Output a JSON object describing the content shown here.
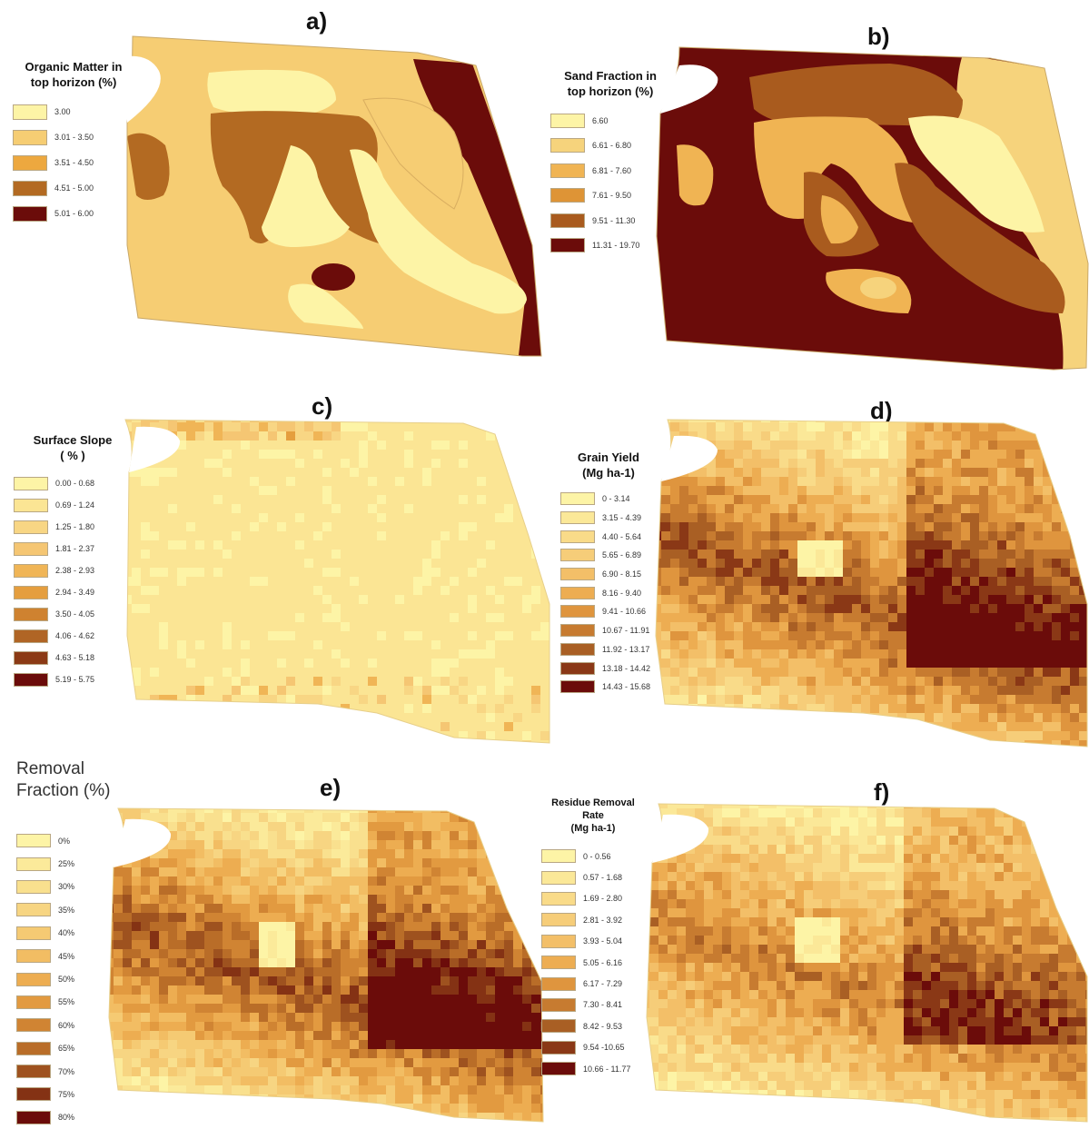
{
  "panels": [
    {
      "id": "a",
      "label": "a)",
      "legend_title": [
        "Organic Matter in",
        "top horizon (%)"
      ],
      "classes": [
        {
          "label": "3.00",
          "color": "#FDF4A6"
        },
        {
          "label": "3.01 - 3.50",
          "color": "#F6CD73"
        },
        {
          "label": "3.51 - 4.50",
          "color": "#EDA83F"
        },
        {
          "label": "4.51 - 5.00",
          "color": "#B36A22"
        },
        {
          "label": "5.01 - 6.00",
          "color": "#6B0C0A"
        }
      ]
    },
    {
      "id": "b",
      "label": "b)",
      "legend_title": [
        "Sand Fraction in",
        "top horizon (%)"
      ],
      "classes": [
        {
          "label": "6.60",
          "color": "#FDF4A6"
        },
        {
          "label": "6.61 - 6.80",
          "color": "#F6D37C"
        },
        {
          "label": "6.81 - 7.60",
          "color": "#F0B453"
        },
        {
          "label": "7.61 - 9.50",
          "color": "#DE9436"
        },
        {
          "label": "9.51 - 11.30",
          "color": "#A95B1E"
        },
        {
          "label": "11.31 - 19.70",
          "color": "#6B0C0A"
        }
      ]
    },
    {
      "id": "c",
      "label": "c)",
      "legend_title": [
        "Surface Slope",
        "( % )"
      ],
      "classes": [
        {
          "label": "0.00 - 0.68",
          "color": "#FDF4A6"
        },
        {
          "label": "0.69 - 1.24",
          "color": "#FBE594"
        },
        {
          "label": "1.25 - 1.80",
          "color": "#F8D684"
        },
        {
          "label": "1.81 - 2.37",
          "color": "#F5C673"
        },
        {
          "label": "2.38 - 2.93",
          "color": "#F0B556"
        },
        {
          "label": "2.94 - 3.49",
          "color": "#E59E3E"
        },
        {
          "label": "3.50 - 4.05",
          "color": "#CF8230"
        },
        {
          "label": "4.06 - 4.62",
          "color": "#B06525"
        },
        {
          "label": "4.63 - 5.18",
          "color": "#8B3A15"
        },
        {
          "label": "5.19 - 5.75",
          "color": "#6B0C0A"
        }
      ]
    },
    {
      "id": "d",
      "label": "d)",
      "legend_title": [
        "Grain Yield",
        "(Mg ha-1)"
      ],
      "classes": [
        {
          "label": "0 - 3.14",
          "color": "#FDF4A6"
        },
        {
          "label": "3.15 - 4.39",
          "color": "#FBE898"
        },
        {
          "label": "4.40 - 5.64",
          "color": "#F9DB89"
        },
        {
          "label": "5.65 - 6.89",
          "color": "#F6CD79"
        },
        {
          "label": "6.90 - 8.15",
          "color": "#F3BF68"
        },
        {
          "label": "8.16 - 9.40",
          "color": "#EDAD52"
        },
        {
          "label": "9.41 - 10.66",
          "color": "#DF953E"
        },
        {
          "label": "10.67 - 11.91",
          "color": "#C77B30"
        },
        {
          "label": "11.92 - 13.17",
          "color": "#A95F24"
        },
        {
          "label": "13.18 - 14.42",
          "color": "#8A3816"
        },
        {
          "label": "14.43 - 15.68",
          "color": "#6B0C0A"
        }
      ]
    },
    {
      "id": "e",
      "label": "e)",
      "legend_title": [
        "Removal",
        "Fraction (%)"
      ],
      "classes": [
        {
          "label": "0%",
          "color": "#FDF4A6"
        },
        {
          "label": "25%",
          "color": "#FBEA9A"
        },
        {
          "label": "30%",
          "color": "#F9E08E"
        },
        {
          "label": "35%",
          "color": "#F7D582"
        },
        {
          "label": "40%",
          "color": "#F5CA73"
        },
        {
          "label": "45%",
          "color": "#F2BD63"
        },
        {
          "label": "50%",
          "color": "#EDAD51"
        },
        {
          "label": "55%",
          "color": "#E29A40"
        },
        {
          "label": "60%",
          "color": "#D08433"
        },
        {
          "label": "65%",
          "color": "#B96D28"
        },
        {
          "label": "70%",
          "color": "#9E521F"
        },
        {
          "label": "75%",
          "color": "#843214"
        },
        {
          "label": "80%",
          "color": "#6B0C0A"
        }
      ]
    },
    {
      "id": "f",
      "label": "f)",
      "legend_title": [
        "Residue Removal",
        "Rate",
        "(Mg ha-1)"
      ],
      "classes": [
        {
          "label": "0 - 0.56",
          "color": "#FDF4A6"
        },
        {
          "label": "0.57 - 1.68",
          "color": "#FBE898"
        },
        {
          "label": "1.69 - 2.80",
          "color": "#F9DB89"
        },
        {
          "label": "2.81 - 3.92",
          "color": "#F6CD79"
        },
        {
          "label": "3.93 - 5.04",
          "color": "#F3BF68"
        },
        {
          "label": "5.05 - 6.16",
          "color": "#EDAD52"
        },
        {
          "label": "6.17 - 7.29",
          "color": "#DF953E"
        },
        {
          "label": "7.30 - 8.41",
          "color": "#C77B30"
        },
        {
          "label": "8.42 - 9.53",
          "color": "#A95F24"
        },
        {
          "label": "9.54 -10.65",
          "color": "#8A3816"
        },
        {
          "label": "10.66 - 11.77",
          "color": "#6B0C0A"
        }
      ]
    }
  ]
}
